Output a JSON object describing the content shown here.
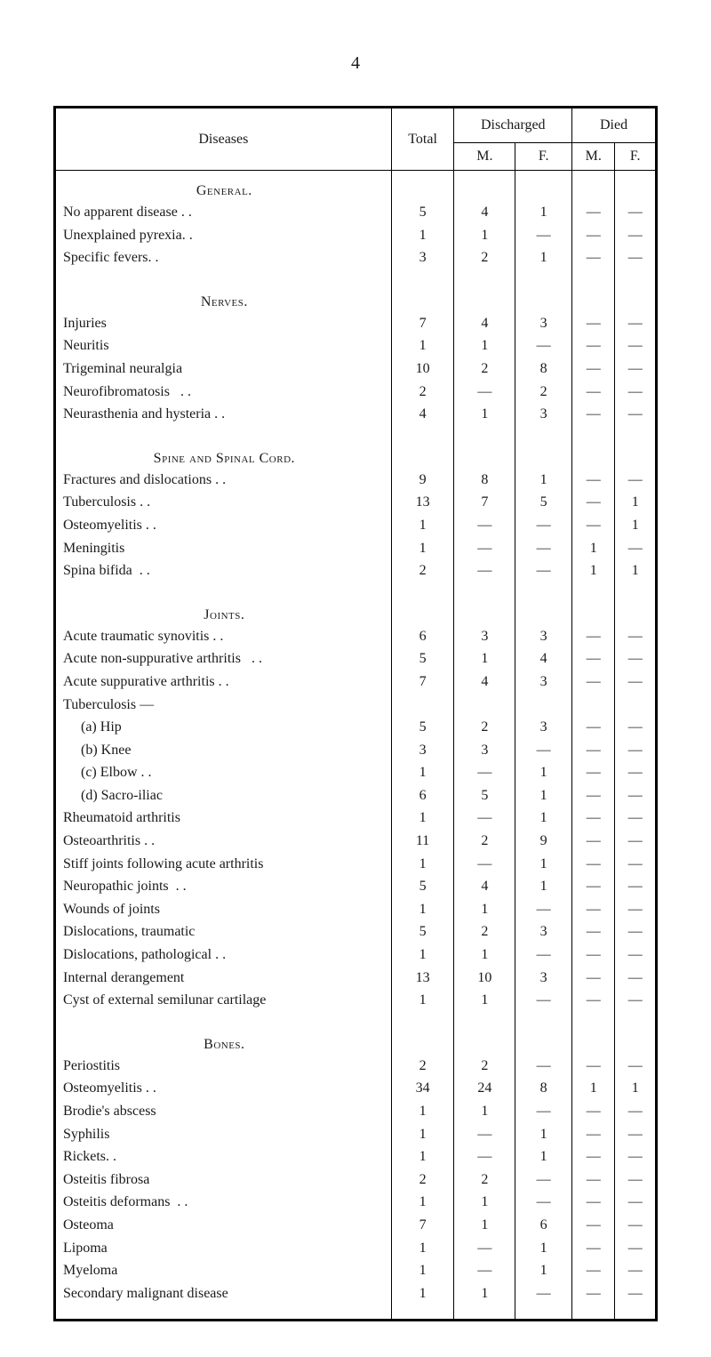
{
  "page_number": "4",
  "columns": {
    "diseases": "Diseases",
    "total": "Total",
    "discharged": "Discharged",
    "died": "Died",
    "m": "M.",
    "f": "F.",
    "f_died": "F."
  },
  "sections": [
    {
      "title": "General.",
      "rows": [
        {
          "label": "No apparent disease . .",
          "total": "5",
          "dm": "4",
          "df": "1",
          "xm": "—",
          "xf": "—"
        },
        {
          "label": "Unexplained pyrexia. .",
          "total": "1",
          "dm": "1",
          "df": "—",
          "xm": "—",
          "xf": "—"
        },
        {
          "label": "Specific fevers. .",
          "total": "3",
          "dm": "2",
          "df": "1",
          "xm": "—",
          "xf": "—"
        }
      ]
    },
    {
      "title": "Nerves.",
      "rows": [
        {
          "label": "Injuries",
          "total": "7",
          "dm": "4",
          "df": "3",
          "xm": "—",
          "xf": "—"
        },
        {
          "label": "Neuritis",
          "total": "1",
          "dm": "1",
          "df": "—",
          "xm": "—",
          "xf": "—"
        },
        {
          "label": "Trigeminal neuralgia",
          "total": "10",
          "dm": "2",
          "df": "8",
          "xm": "—",
          "xf": "—"
        },
        {
          "label": "Neurofibromatosis   . .",
          "total": "2",
          "dm": "—",
          "df": "2",
          "xm": "—",
          "xf": "—"
        },
        {
          "label": "Neurasthenia and hysteria . .",
          "total": "4",
          "dm": "1",
          "df": "3",
          "xm": "—",
          "xf": "—"
        }
      ]
    },
    {
      "title": "Spine and Spinal Cord.",
      "rows": [
        {
          "label": "Fractures and dislocations . .",
          "total": "9",
          "dm": "8",
          "df": "1",
          "xm": "—",
          "xf": "—"
        },
        {
          "label": "Tuberculosis . .",
          "total": "13",
          "dm": "7",
          "df": "5",
          "xm": "—",
          "xf": "1"
        },
        {
          "label": "Osteomyelitis . .",
          "total": "1",
          "dm": "—",
          "df": "—",
          "xm": "—",
          "xf": "1"
        },
        {
          "label": "Meningitis",
          "total": "1",
          "dm": "—",
          "df": "—",
          "xm": "1",
          "xf": "—"
        },
        {
          "label": "Spina bifida  . .",
          "total": "2",
          "dm": "—",
          "df": "—",
          "xm": "1",
          "xf": "1"
        }
      ]
    },
    {
      "title": "Joints.",
      "rows": [
        {
          "label": "Acute traumatic synovitis . .",
          "total": "6",
          "dm": "3",
          "df": "3",
          "xm": "—",
          "xf": "—"
        },
        {
          "label": "Acute non-suppurative arthritis   . .",
          "total": "5",
          "dm": "1",
          "df": "4",
          "xm": "—",
          "xf": "—"
        },
        {
          "label": "Acute suppurative arthritis . .",
          "total": "7",
          "dm": "4",
          "df": "3",
          "xm": "—",
          "xf": "—"
        },
        {
          "label": "Tuberculosis —",
          "total": "",
          "dm": "",
          "df": "",
          "xm": "",
          "xf": ""
        },
        {
          "label": "(a) Hip",
          "indent": true,
          "total": "5",
          "dm": "2",
          "df": "3",
          "xm": "—",
          "xf": "—"
        },
        {
          "label": "(b) Knee",
          "indent": true,
          "total": "3",
          "dm": "3",
          "df": "—",
          "xm": "—",
          "xf": "—"
        },
        {
          "label": "(c) Elbow . .",
          "indent": true,
          "total": "1",
          "dm": "—",
          "df": "1",
          "xm": "—",
          "xf": "—"
        },
        {
          "label": "(d) Sacro-iliac",
          "indent": true,
          "total": "6",
          "dm": "5",
          "df": "1",
          "xm": "—",
          "xf": "—"
        },
        {
          "label": "Rheumatoid arthritis",
          "total": "1",
          "dm": "—",
          "df": "1",
          "xm": "—",
          "xf": "—"
        },
        {
          "label": "Osteoarthritis . .",
          "total": "11",
          "dm": "2",
          "df": "9",
          "xm": "—",
          "xf": "—"
        },
        {
          "label": "Stiff joints following acute arthritis",
          "total": "1",
          "dm": "—",
          "df": "1",
          "xm": "—",
          "xf": "—"
        },
        {
          "label": "Neuropathic joints  . .",
          "total": "5",
          "dm": "4",
          "df": "1",
          "xm": "—",
          "xf": "—"
        },
        {
          "label": "Wounds of joints",
          "total": "1",
          "dm": "1",
          "df": "—",
          "xm": "—",
          "xf": "—"
        },
        {
          "label": "Dislocations, traumatic",
          "total": "5",
          "dm": "2",
          "df": "3",
          "xm": "—",
          "xf": "—"
        },
        {
          "label": "Dislocations, pathological . .",
          "total": "1",
          "dm": "1",
          "df": "—",
          "xm": "—",
          "xf": "—"
        },
        {
          "label": "Internal derangement",
          "total": "13",
          "dm": "10",
          "df": "3",
          "xm": "—",
          "xf": "—"
        },
        {
          "label": "Cyst of external semilunar cartilage",
          "total": "1",
          "dm": "1",
          "df": "—",
          "xm": "—",
          "xf": "—"
        }
      ]
    },
    {
      "title": "Bones.",
      "rows": [
        {
          "label": "Periostitis",
          "total": "2",
          "dm": "2",
          "df": "—",
          "xm": "—",
          "xf": "—"
        },
        {
          "label": "Osteomyelitis . .",
          "total": "34",
          "dm": "24",
          "df": "8",
          "xm": "1",
          "xf": "1"
        },
        {
          "label": "Brodie's abscess",
          "total": "1",
          "dm": "1",
          "df": "—",
          "xm": "—",
          "xf": "—"
        },
        {
          "label": "Syphilis",
          "total": "1",
          "dm": "—",
          "df": "1",
          "xm": "—",
          "xf": "—"
        },
        {
          "label": "Rickets. .",
          "total": "1",
          "dm": "—",
          "df": "1",
          "xm": "—",
          "xf": "—"
        },
        {
          "label": "Osteitis fibrosa",
          "total": "2",
          "dm": "2",
          "df": "—",
          "xm": "—",
          "xf": "—"
        },
        {
          "label": "Osteitis deformans  . .",
          "total": "1",
          "dm": "1",
          "df": "—",
          "xm": "—",
          "xf": "—"
        },
        {
          "label": "Osteoma",
          "total": "7",
          "dm": "1",
          "df": "6",
          "xm": "—",
          "xf": "—"
        },
        {
          "label": "Lipoma",
          "total": "1",
          "dm": "—",
          "df": "1",
          "xm": "—",
          "xf": "—"
        },
        {
          "label": "Myeloma",
          "total": "1",
          "dm": "—",
          "df": "1",
          "xm": "—",
          "xf": "—"
        },
        {
          "label": "Secondary malignant disease",
          "total": "1",
          "dm": "1",
          "df": "—",
          "xm": "—",
          "xf": "—"
        }
      ]
    }
  ]
}
